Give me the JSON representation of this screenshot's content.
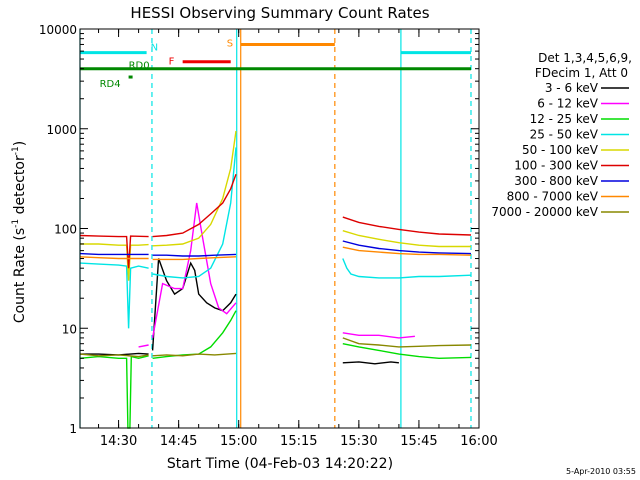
{
  "chart_data": {
    "type": "line",
    "title": "HESSI Observing Summary Count Rates",
    "xlabel": "Start Time (04-Feb-03 14:20:22)",
    "ylabel_main": "Count Rate (s",
    "ylabel_sup1": "-1",
    "ylabel_mid": " detector",
    "ylabel_sup2": "-1",
    "ylabel_end": ")",
    "timestamp": "5-Apr-2010 03:55",
    "y_scale": "log",
    "ylim": [
      1,
      10000
    ],
    "xlim": [
      "14:20:22",
      "16:00:00"
    ],
    "x_ticks": [
      "14:30",
      "14:45",
      "15:00",
      "15:15",
      "15:30",
      "15:45",
      "16:00"
    ],
    "y_ticks": [
      "1",
      "10",
      "100",
      "1000",
      "10000"
    ],
    "legend_title_1": "Det 1,3,4,5,6,9,",
    "legend_title_2": "FDecim 1, Att 0",
    "legend": [
      {
        "label": "3 - 6 keV",
        "color": "#000000"
      },
      {
        "label": "6 - 12 keV",
        "color": "#ff00ff"
      },
      {
        "label": "12 - 25 keV",
        "color": "#00dd00"
      },
      {
        "label": "25 - 50 keV",
        "color": "#00e5e5"
      },
      {
        "label": "50 - 100 keV",
        "color": "#d8d800"
      },
      {
        "label": "100 - 300 keV",
        "color": "#dd0000"
      },
      {
        "label": "300 - 800 keV",
        "color": "#0000dd"
      },
      {
        "label": "800 - 7000 keV",
        "color": "#ff8800"
      },
      {
        "label": "7000 - 20000 keV",
        "color": "#888800"
      }
    ],
    "flags": [
      {
        "label": "N",
        "color": "#00e5e5",
        "value": 5800,
        "segments": [
          [
            "14:20:22",
            "14:37:00"
          ],
          [
            "15:40:30",
            "15:58:00"
          ]
        ]
      },
      {
        "label": "F",
        "color": "#ee0000",
        "value": 4700,
        "segments": [
          [
            "14:46:00",
            "14:58:00"
          ]
        ]
      },
      {
        "label": "S",
        "color": "#ff8800",
        "value": 7000,
        "segments": [
          [
            "15:00:30",
            "15:24:00"
          ]
        ]
      },
      {
        "label": "RD0",
        "color": "#008800",
        "value": 4000,
        "segments": [
          [
            "14:20:22",
            "15:58:00"
          ]
        ]
      },
      {
        "label": "RD4",
        "color": "#008800",
        "value": 3300,
        "segments": [
          [
            "14:32:30",
            "14:33:30"
          ]
        ]
      }
    ],
    "vlines": [
      {
        "time": "14:20:22",
        "color": "#00e5e5",
        "style": "solid"
      },
      {
        "time": "14:38:20",
        "color": "#00e5e5",
        "style": "dashed"
      },
      {
        "time": "14:59:30",
        "color": "#00e5e5",
        "style": "solid"
      },
      {
        "time": "15:00:30",
        "color": "#ff8800",
        "style": "solid"
      },
      {
        "time": "15:24:00",
        "color": "#ff8800",
        "style": "dashed"
      },
      {
        "time": "15:40:30",
        "color": "#00e5e5",
        "style": "solid"
      },
      {
        "time": "15:58:00",
        "color": "#00e5e5",
        "style": "dashed"
      }
    ],
    "series": [
      {
        "name": "3 - 6 keV",
        "color": "#000000",
        "segments": [
          {
            "x": [
              "14:20:22",
              "14:25:00",
              "14:30:00",
              "14:35:00",
              "14:37:30"
            ],
            "y": [
              5.5,
              5.5,
              5.4,
              5.6,
              5.5
            ]
          },
          {
            "x": [
              "14:38:30",
              "14:40:00",
              "14:42:00",
              "14:44:00",
              "14:46:00",
              "14:48:00",
              "14:49:00",
              "14:50:00",
              "14:52:00",
              "14:54:00",
              "14:56:00",
              "14:58:00",
              "14:59:20"
            ],
            "y": [
              6,
              50,
              30,
              22,
              25,
              45,
              38,
              22,
              18,
              16,
              15,
              18,
              22
            ]
          },
          {
            "x": [
              "15:26:00",
              "15:30:00",
              "15:34:00",
              "15:38:00",
              "15:40:00"
            ],
            "y": [
              4.5,
              4.6,
              4.4,
              4.6,
              4.5
            ]
          }
        ]
      },
      {
        "name": "6 - 12 keV",
        "color": "#ff00ff",
        "segments": [
          {
            "x": [
              "14:35:00",
              "14:37:30"
            ],
            "y": [
              6.5,
              6.8
            ]
          },
          {
            "x": [
              "14:38:30",
              "14:41:00",
              "14:44:00",
              "14:46:00",
              "14:48:00",
              "14:49:30",
              "14:51:00",
              "14:53:00",
              "14:55:00",
              "14:57:00",
              "14:59:20"
            ],
            "y": [
              8,
              28,
              25,
              25,
              60,
              180,
              80,
              28,
              16,
              14,
              18
            ]
          },
          {
            "x": [
              "15:26:00",
              "15:30:00",
              "15:35:00",
              "15:40:00",
              "15:44:00"
            ],
            "y": [
              9,
              8.5,
              8.5,
              8,
              8.3
            ]
          }
        ]
      },
      {
        "name": "12 - 25 keV",
        "color": "#00dd00",
        "segments": [
          {
            "x": [
              "14:20:22",
              "14:25:00",
              "14:30:00",
              "14:32:00",
              "14:32:20",
              "14:32:50",
              "14:33:10",
              "14:35:00",
              "14:37:30"
            ],
            "y": [
              5,
              5.2,
              5,
              5,
              1,
              1,
              5.2,
              5,
              5.3
            ]
          },
          {
            "x": [
              "14:38:30",
              "14:42:00",
              "14:46:00",
              "14:50:00",
              "14:53:00",
              "14:56:00",
              "14:58:00",
              "14:59:20"
            ],
            "y": [
              5,
              5.2,
              5.4,
              5.5,
              6.5,
              9,
              12,
              15
            ]
          },
          {
            "x": [
              "15:26:00",
              "15:30:00",
              "15:35:00",
              "15:40:00",
              "15:45:00",
              "15:50:00",
              "15:58:00"
            ],
            "y": [
              7,
              6.5,
              6,
              5.5,
              5.2,
              5,
              5.1
            ]
          }
        ]
      },
      {
        "name": "25 - 50 keV",
        "color": "#00e5e5",
        "segments": [
          {
            "x": [
              "14:20:22",
              "14:25:00",
              "14:30:00",
              "14:32:00",
              "14:32:30",
              "14:33:00",
              "14:35:00",
              "14:37:30"
            ],
            "y": [
              45,
              44,
              43,
              42,
              10,
              40,
              42,
              40
            ]
          },
          {
            "x": [
              "14:38:30",
              "14:42:00",
              "14:46:00",
              "14:50:00",
              "14:53:00",
              "14:56:00",
              "14:58:00",
              "14:59:20"
            ],
            "y": [
              35,
              33,
              32,
              33,
              40,
              70,
              180,
              650
            ]
          },
          {
            "x": [
              "15:26:00",
              "15:27:00",
              "15:28:00",
              "15:30:00",
              "15:35:00",
              "15:40:00",
              "15:45:00",
              "15:50:00",
              "15:58:00"
            ],
            "y": [
              50,
              40,
              35,
              33,
              32,
              32,
              33,
              33,
              34
            ]
          }
        ]
      },
      {
        "name": "50 - 100 keV",
        "color": "#d8d800",
        "segments": [
          {
            "x": [
              "14:20:22",
              "14:25:00",
              "14:30:00",
              "14:32:00",
              "14:32:30",
              "14:33:00",
              "14:35:00",
              "14:37:30"
            ],
            "y": [
              70,
              70,
              68,
              68,
              30,
              68,
              68,
              69
            ]
          },
          {
            "x": [
              "14:38:30",
              "14:42:00",
              "14:46:00",
              "14:50:00",
              "14:53:00",
              "14:56:00",
              "14:58:00",
              "14:59:20"
            ],
            "y": [
              67,
              68,
              70,
              80,
              110,
              200,
              400,
              950
            ]
          },
          {
            "x": [
              "15:26:00",
              "15:30:00",
              "15:35:00",
              "15:40:00",
              "15:45:00",
              "15:50:00",
              "15:58:00"
            ],
            "y": [
              95,
              85,
              78,
              72,
              68,
              66,
              66
            ]
          }
        ]
      },
      {
        "name": "100 - 300 keV",
        "color": "#dd0000",
        "segments": [
          {
            "x": [
              "14:20:22",
              "14:25:00",
              "14:30:00",
              "14:32:00",
              "14:32:30",
              "14:33:00",
              "14:37:30"
            ],
            "y": [
              85,
              84,
              83,
              83,
              40,
              84,
              83
            ]
          },
          {
            "x": [
              "14:38:30",
              "14:42:00",
              "14:46:00",
              "14:50:00",
              "14:53:00",
              "14:56:00",
              "14:58:00",
              "14:59:20"
            ],
            "y": [
              83,
              85,
              90,
              110,
              140,
              180,
              250,
              350
            ]
          },
          {
            "x": [
              "15:26:00",
              "15:30:00",
              "15:35:00",
              "15:40:00",
              "15:45:00",
              "15:50:00",
              "15:58:00"
            ],
            "y": [
              130,
              115,
              105,
              98,
              92,
              88,
              86
            ]
          }
        ]
      },
      {
        "name": "300 - 800 keV",
        "color": "#0000dd",
        "segments": [
          {
            "x": [
              "14:20:22",
              "14:25:00",
              "14:30:00",
              "14:37:30"
            ],
            "y": [
              56,
              55,
              55,
              55
            ]
          },
          {
            "x": [
              "14:38:30",
              "14:42:00",
              "14:46:00",
              "14:50:00",
              "14:54:00",
              "14:59:20"
            ],
            "y": [
              54,
              54,
              53,
              53,
              54,
              55
            ]
          },
          {
            "x": [
              "15:26:00",
              "15:30:00",
              "15:35:00",
              "15:40:00",
              "15:45:00",
              "15:50:00",
              "15:58:00"
            ],
            "y": [
              75,
              68,
              63,
              60,
              58,
              57,
              56
            ]
          }
        ]
      },
      {
        "name": "800 - 7000 keV",
        "color": "#ff8800",
        "segments": [
          {
            "x": [
              "14:20:22",
              "14:25:00",
              "14:30:00",
              "14:37:30"
            ],
            "y": [
              52,
              51,
              50,
              50
            ]
          },
          {
            "x": [
              "14:38:30",
              "14:42:00",
              "14:46:00",
              "14:50:00",
              "14:54:00",
              "14:59:20"
            ],
            "y": [
              49,
              49,
              49,
              50,
              51,
              52
            ]
          },
          {
            "x": [
              "15:26:00",
              "15:30:00",
              "15:35:00",
              "15:40:00",
              "15:45:00",
              "15:50:00",
              "15:58:00"
            ],
            "y": [
              65,
              60,
              58,
              56,
              55,
              55,
              54
            ]
          }
        ]
      },
      {
        "name": "7000 - 20000 keV",
        "color": "#888800",
        "segments": [
          {
            "x": [
              "14:20:22",
              "14:25:00",
              "14:30:00",
              "14:35:00",
              "14:37:30"
            ],
            "y": [
              5.5,
              5.3,
              5.4,
              5.2,
              5.4
            ]
          },
          {
            "x": [
              "14:38:30",
              "14:42:00",
              "14:46:00",
              "14:50:00",
              "14:54:00",
              "14:59:20"
            ],
            "y": [
              5.3,
              5.4,
              5.3,
              5.5,
              5.4,
              5.6
            ]
          },
          {
            "x": [
              "15:26:00",
              "15:30:00",
              "15:35:00",
              "15:40:00",
              "15:45:00",
              "15:50:00",
              "15:58:00"
            ],
            "y": [
              8,
              7,
              6.8,
              6.5,
              6.6,
              6.7,
              6.8
            ]
          }
        ]
      }
    ]
  }
}
